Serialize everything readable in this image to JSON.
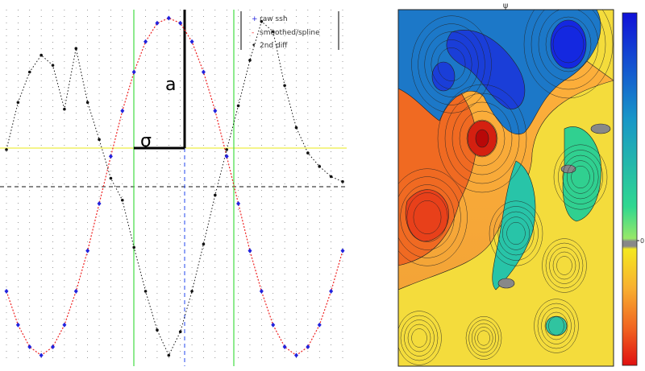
{
  "left_chart": {
    "legend": [
      "raw ssh",
      "smoothed/spline",
      "2nd diff"
    ],
    "annotation_a": "a",
    "annotation_sigma": "σ"
  },
  "right_chart": {
    "title": "ψ",
    "colorbar_label": "0"
  },
  "colors": {
    "raw": "#2222dd",
    "smooth": "#ee2222",
    "diff": "#111111",
    "green_lines": "#44dd44",
    "yellow_line": "#eeee44",
    "dashed_center": "#2244ee"
  },
  "chart_data": [
    {
      "type": "line",
      "series": [
        {
          "name": "raw ssh",
          "x": [
            0,
            1,
            2,
            3,
            4,
            5,
            6,
            7,
            8,
            9,
            10,
            11,
            12,
            13,
            14,
            15,
            16,
            17,
            18,
            19,
            20,
            21,
            22,
            23,
            24,
            25,
            26,
            27,
            28,
            29
          ],
          "y": [
            -0.62,
            -0.82,
            -0.95,
            -1.0,
            -0.95,
            -0.82,
            -0.62,
            -0.38,
            -0.1,
            0.18,
            0.45,
            0.68,
            0.86,
            0.97,
            1.0,
            0.97,
            0.86,
            0.68,
            0.45,
            0.18,
            -0.1,
            -0.38,
            -0.62,
            -0.82,
            -0.95,
            -1.0,
            -0.95,
            -0.82,
            -0.62,
            -0.38
          ]
        },
        {
          "name": "smoothed/spline",
          "x": [
            0,
            1,
            2,
            3,
            4,
            5,
            6,
            7,
            8,
            9,
            10,
            11,
            12,
            13,
            14,
            15,
            16,
            17,
            18,
            19,
            20,
            21,
            22,
            23,
            24,
            25,
            26,
            27,
            28,
            29
          ],
          "y": [
            -0.62,
            -0.82,
            -0.95,
            -1.0,
            -0.95,
            -0.82,
            -0.62,
            -0.38,
            -0.1,
            0.18,
            0.45,
            0.68,
            0.86,
            0.97,
            1.0,
            0.97,
            0.86,
            0.68,
            0.45,
            0.18,
            -0.1,
            -0.38,
            -0.62,
            -0.82,
            -0.95,
            -1.0,
            -0.95,
            -0.82,
            -0.62,
            -0.38
          ]
        },
        {
          "name": "2nd diff",
          "x": [
            0,
            1,
            2,
            3,
            4,
            5,
            6,
            7,
            8,
            9,
            10,
            11,
            12,
            13,
            14,
            15,
            16,
            17,
            18,
            19,
            20,
            21,
            22,
            23,
            24,
            25,
            26,
            27,
            28,
            29
          ],
          "y": [
            0.22,
            0.5,
            0.68,
            0.78,
            0.72,
            0.46,
            0.82,
            0.5,
            0.28,
            0.05,
            -0.08,
            -0.36,
            -0.62,
            -0.85,
            -1.0,
            -0.86,
            -0.62,
            -0.34,
            -0.05,
            0.22,
            0.48,
            0.75,
            0.98,
            0.92,
            0.6,
            0.35,
            0.2,
            0.12,
            0.06,
            0.03
          ]
        }
      ],
      "xlim": [
        0,
        29
      ],
      "ylim": [
        -1.05,
        1.05
      ],
      "vertical_lines": {
        "green": [
          11,
          19.5
        ],
        "center_dashed": 14
      },
      "horizontal_lines": {
        "yellow": 0.15,
        "black_dashed": -0.22
      },
      "legend_position": "top-right",
      "grid": true
    },
    {
      "type": "heatmap",
      "title": "ψ",
      "colormap": "jet_reversed",
      "colorbar_ticks": [
        "0"
      ],
      "contours": true
    }
  ]
}
